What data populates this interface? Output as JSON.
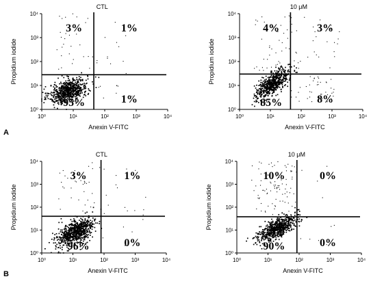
{
  "panel_labels": [
    "A",
    "B"
  ],
  "chart_data": [
    {
      "type": "scatter",
      "panel": "A",
      "title": "CTL",
      "xlabel": "Anexin V-FITC",
      "ylabel": "Propidium iodide",
      "log_scale": true,
      "xlim": [
        1,
        10000
      ],
      "ylim": [
        1,
        10000
      ],
      "x_ticks": [
        "10⁰",
        "10¹",
        "10²",
        "10³",
        "10⁴"
      ],
      "y_ticks": [
        "10⁰",
        "10¹",
        "10²",
        "10³",
        "10⁴"
      ],
      "gate": {
        "x": 45,
        "y": 28
      },
      "quadrant_percentages": {
        "upper_left": "3%",
        "upper_right": "1%",
        "lower_left": "95%",
        "lower_right": "1%"
      },
      "population": {
        "center": [
          7,
          6
        ],
        "spread": [
          0.3,
          0.26
        ],
        "tilt": 0.45,
        "n": 700,
        "upper_left_n": 28,
        "upper_right_n": 12,
        "lower_right_n": 8
      }
    },
    {
      "type": "scatter",
      "panel": "A",
      "title": "10 μM",
      "xlabel": "Anexin V-FITC",
      "ylabel": "Propidium iodide",
      "log_scale": true,
      "xlim": [
        1,
        10000
      ],
      "ylim": [
        1,
        10000
      ],
      "x_ticks": [
        "10⁰",
        "10¹",
        "10²",
        "10³",
        "10⁴"
      ],
      "y_ticks": [
        "10⁰",
        "10¹",
        "10²",
        "10³",
        "10⁴"
      ],
      "gate": {
        "x": 45,
        "y": 30
      },
      "quadrant_percentages": {
        "upper_left": "4%",
        "upper_right": "3%",
        "lower_left": "85%",
        "lower_right": "8%"
      },
      "population": {
        "center": [
          12,
          12
        ],
        "spread": [
          0.27,
          0.3
        ],
        "tilt": 0.7,
        "n": 600,
        "upper_left_n": 45,
        "upper_right_n": 30,
        "lower_right_n": 40
      }
    },
    {
      "type": "scatter",
      "panel": "B",
      "title": "CTL",
      "xlabel": "Anexin V-FITC",
      "ylabel": "Propidium iodide",
      "log_scale": true,
      "xlim": [
        1,
        10000
      ],
      "ylim": [
        1,
        10000
      ],
      "x_ticks": [
        "10⁰",
        "10¹",
        "10²",
        "10³",
        "10⁴"
      ],
      "y_ticks": [
        "10⁰",
        "10¹",
        "10²",
        "10³",
        "10⁴"
      ],
      "gate": {
        "x": 80,
        "y": 40
      },
      "quadrant_percentages": {
        "upper_left": "3%",
        "upper_right": "1%",
        "lower_left": "96%",
        "lower_right": "0%"
      },
      "population": {
        "center": [
          12,
          8
        ],
        "spread": [
          0.3,
          0.3
        ],
        "tilt": 0.5,
        "n": 750,
        "upper_left_n": 35,
        "upper_right_n": 15,
        "lower_right_n": 5
      }
    },
    {
      "type": "scatter",
      "panel": "B",
      "title": "10 μM",
      "xlabel": "Anexin V-FITC",
      "ylabel": "Propidium iodide",
      "log_scale": true,
      "xlim": [
        1,
        10000
      ],
      "ylim": [
        1,
        10000
      ],
      "x_ticks": [
        "10⁰",
        "10¹",
        "10²",
        "10³",
        "10⁴"
      ],
      "y_ticks": [
        "10⁰",
        "10¹",
        "10²",
        "10³",
        "10⁴"
      ],
      "gate": {
        "x": 85,
        "y": 38
      },
      "quadrant_percentages": {
        "upper_left": "10%",
        "upper_right": "0%",
        "lower_left": "90%",
        "lower_right": "0%"
      },
      "population": {
        "center": [
          20,
          12
        ],
        "spread": [
          0.3,
          0.27
        ],
        "tilt": 0.65,
        "n": 650,
        "upper_left_n": 90,
        "upper_right_n": 4,
        "lower_right_n": 6
      }
    }
  ]
}
